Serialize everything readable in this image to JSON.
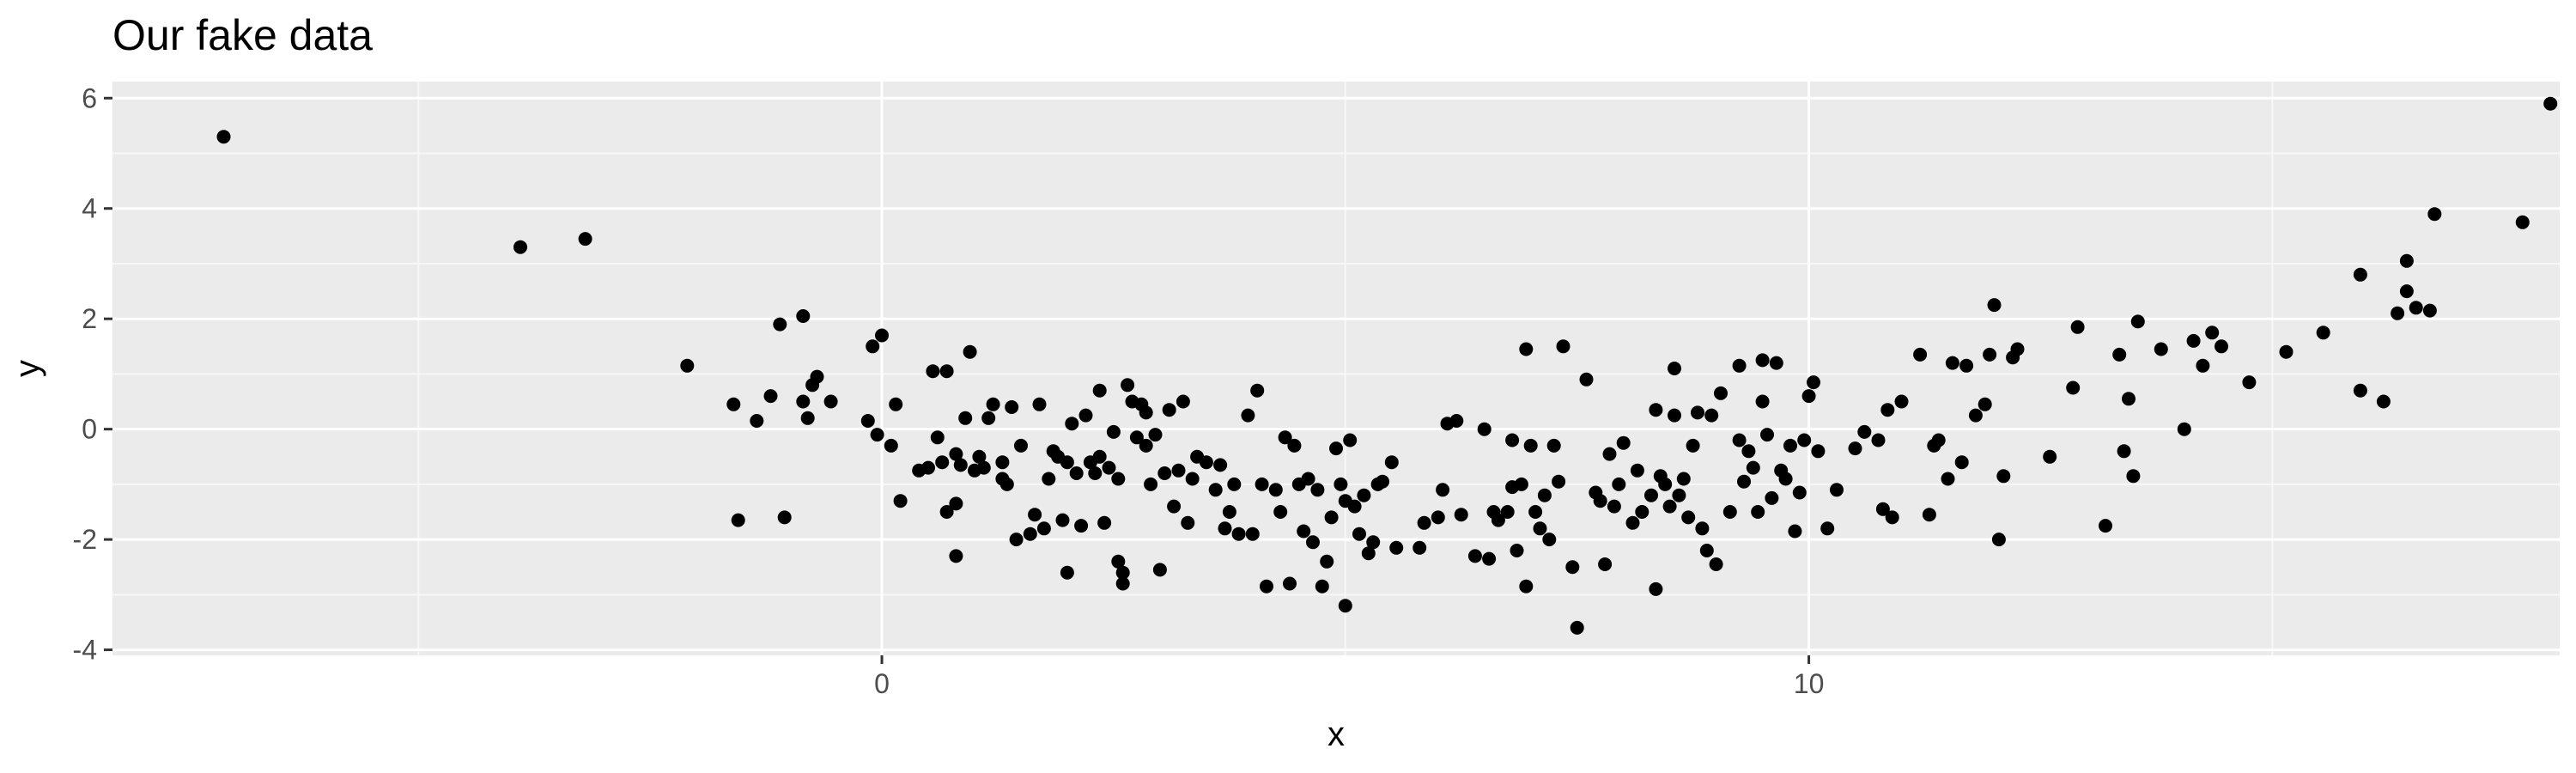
{
  "chart_data": {
    "type": "scatter",
    "title": "Our fake data",
    "xlabel": "x",
    "ylabel": "y",
    "xlim": [
      -8.3,
      18.1
    ],
    "ylim": [
      -4.1,
      6.3
    ],
    "x_ticks": [
      0,
      10
    ],
    "x_tick_labels": [
      "0",
      "10"
    ],
    "y_ticks": [
      -4,
      -2,
      0,
      2,
      4,
      6
    ],
    "y_tick_labels": [
      "-4",
      "-2",
      "0",
      "2",
      "4",
      "6"
    ],
    "grid": true,
    "legend": "none",
    "colors": {
      "panel_background": "#ebebeb",
      "grid_major": "#ffffff",
      "grid_minor": "#f7f7f7",
      "points": "#000000",
      "tick_marks": "#333333",
      "tick_labels": "#4d4d4d"
    },
    "points": [
      [
        -7.1,
        5.3
      ],
      [
        -3.9,
        3.3
      ],
      [
        -3.2,
        3.45
      ],
      [
        -2.1,
        1.15
      ],
      [
        -1.6,
        0.45
      ],
      [
        -1.55,
        -1.65
      ],
      [
        -1.35,
        0.15
      ],
      [
        -1.2,
        0.6
      ],
      [
        -1.1,
        1.9
      ],
      [
        -1.05,
        -1.6
      ],
      [
        -0.85,
        2.05
      ],
      [
        -0.85,
        0.5
      ],
      [
        -0.8,
        0.2
      ],
      [
        -0.75,
        0.8
      ],
      [
        -0.7,
        0.95
      ],
      [
        -0.55,
        0.5
      ],
      [
        -0.15,
        0.15
      ],
      [
        -0.1,
        1.5
      ],
      [
        -0.05,
        -0.1
      ],
      [
        0.0,
        1.7
      ],
      [
        0.1,
        -0.3
      ],
      [
        0.15,
        0.45
      ],
      [
        0.2,
        -1.3
      ],
      [
        0.4,
        -0.75
      ],
      [
        0.5,
        -0.7
      ],
      [
        0.55,
        1.05
      ],
      [
        0.6,
        -0.15
      ],
      [
        0.65,
        -0.6
      ],
      [
        0.7,
        -1.5
      ],
      [
        0.7,
        1.05
      ],
      [
        0.8,
        -1.35
      ],
      [
        0.8,
        -0.45
      ],
      [
        0.8,
        -2.3
      ],
      [
        0.85,
        -0.65
      ],
      [
        0.9,
        0.2
      ],
      [
        0.95,
        1.4
      ],
      [
        1.0,
        -0.75
      ],
      [
        1.05,
        -0.5
      ],
      [
        1.1,
        -0.7
      ],
      [
        1.15,
        0.2
      ],
      [
        1.2,
        0.45
      ],
      [
        1.3,
        -0.9
      ],
      [
        1.3,
        -0.6
      ],
      [
        1.35,
        -1.0
      ],
      [
        1.4,
        0.4
      ],
      [
        1.45,
        -2.0
      ],
      [
        1.5,
        -0.3
      ],
      [
        1.6,
        -1.9
      ],
      [
        1.65,
        -1.55
      ],
      [
        1.7,
        0.45
      ],
      [
        1.75,
        -1.8
      ],
      [
        1.8,
        -0.9
      ],
      [
        1.85,
        -0.4
      ],
      [
        1.9,
        -0.5
      ],
      [
        1.95,
        -1.65
      ],
      [
        2.0,
        -2.6
      ],
      [
        2.0,
        -0.6
      ],
      [
        2.05,
        0.1
      ],
      [
        2.1,
        -0.8
      ],
      [
        2.15,
        -1.75
      ],
      [
        2.2,
        0.25
      ],
      [
        2.25,
        -0.6
      ],
      [
        2.3,
        -0.8
      ],
      [
        2.35,
        -0.5
      ],
      [
        2.35,
        0.7
      ],
      [
        2.4,
        -1.7
      ],
      [
        2.45,
        -0.7
      ],
      [
        2.5,
        -0.05
      ],
      [
        2.55,
        -0.9
      ],
      [
        2.55,
        -2.4
      ],
      [
        2.6,
        -2.8
      ],
      [
        2.6,
        -2.6
      ],
      [
        2.65,
        0.8
      ],
      [
        2.7,
        0.5
      ],
      [
        2.75,
        -0.15
      ],
      [
        2.8,
        0.45
      ],
      [
        2.85,
        -0.3
      ],
      [
        2.85,
        0.3
      ],
      [
        2.9,
        -1.0
      ],
      [
        2.95,
        -0.1
      ],
      [
        3.0,
        -2.55
      ],
      [
        3.05,
        -0.8
      ],
      [
        3.1,
        0.35
      ],
      [
        3.15,
        -1.4
      ],
      [
        3.2,
        -0.75
      ],
      [
        3.25,
        0.5
      ],
      [
        3.3,
        -1.7
      ],
      [
        3.35,
        -0.9
      ],
      [
        3.4,
        -0.5
      ],
      [
        3.5,
        -0.6
      ],
      [
        3.6,
        -1.1
      ],
      [
        3.65,
        -0.65
      ],
      [
        3.7,
        -1.8
      ],
      [
        3.75,
        -1.5
      ],
      [
        3.8,
        -1.0
      ],
      [
        3.85,
        -1.9
      ],
      [
        3.95,
        0.25
      ],
      [
        4.0,
        -1.9
      ],
      [
        4.05,
        0.7
      ],
      [
        4.1,
        -1.0
      ],
      [
        4.15,
        -2.85
      ],
      [
        4.25,
        -1.1
      ],
      [
        4.3,
        -1.5
      ],
      [
        4.35,
        -0.15
      ],
      [
        4.4,
        -2.8
      ],
      [
        4.45,
        -0.3
      ],
      [
        4.5,
        -1.0
      ],
      [
        4.55,
        -1.85
      ],
      [
        4.6,
        -0.9
      ],
      [
        4.65,
        -2.05
      ],
      [
        4.7,
        -1.1
      ],
      [
        4.75,
        -2.85
      ],
      [
        4.8,
        -2.4
      ],
      [
        4.85,
        -1.6
      ],
      [
        4.9,
        -0.35
      ],
      [
        4.95,
        -1.0
      ],
      [
        5.0,
        -3.2
      ],
      [
        5.0,
        -1.3
      ],
      [
        5.05,
        -0.2
      ],
      [
        5.1,
        -1.4
      ],
      [
        5.15,
        -1.9
      ],
      [
        5.2,
        -1.2
      ],
      [
        5.25,
        -2.25
      ],
      [
        5.3,
        -2.05
      ],
      [
        5.35,
        -1.0
      ],
      [
        5.4,
        -0.95
      ],
      [
        5.5,
        -0.6
      ],
      [
        5.55,
        -2.15
      ],
      [
        5.8,
        -2.15
      ],
      [
        5.85,
        -1.7
      ],
      [
        6.0,
        -1.6
      ],
      [
        6.05,
        -1.1
      ],
      [
        6.1,
        0.1
      ],
      [
        6.2,
        0.15
      ],
      [
        6.25,
        -1.55
      ],
      [
        6.4,
        -2.3
      ],
      [
        6.5,
        0.0
      ],
      [
        6.55,
        -2.35
      ],
      [
        6.6,
        -1.5
      ],
      [
        6.65,
        -1.65
      ],
      [
        6.75,
        -1.5
      ],
      [
        6.8,
        -1.05
      ],
      [
        6.8,
        -0.2
      ],
      [
        6.85,
        -2.2
      ],
      [
        6.9,
        -1.0
      ],
      [
        6.95,
        1.45
      ],
      [
        6.95,
        -2.85
      ],
      [
        7.0,
        -0.3
      ],
      [
        7.05,
        -1.5
      ],
      [
        7.1,
        -1.8
      ],
      [
        7.15,
        -1.2
      ],
      [
        7.2,
        -2.0
      ],
      [
        7.25,
        -0.3
      ],
      [
        7.3,
        -0.95
      ],
      [
        7.35,
        1.5
      ],
      [
        7.45,
        -2.5
      ],
      [
        7.5,
        -3.6
      ],
      [
        7.6,
        0.9
      ],
      [
        7.7,
        -1.15
      ],
      [
        7.75,
        -1.3
      ],
      [
        7.8,
        -2.45
      ],
      [
        7.85,
        -0.45
      ],
      [
        7.9,
        -1.4
      ],
      [
        7.95,
        -1.0
      ],
      [
        8.0,
        -0.25
      ],
      [
        8.1,
        -1.7
      ],
      [
        8.15,
        -0.75
      ],
      [
        8.2,
        -1.5
      ],
      [
        8.3,
        -1.2
      ],
      [
        8.35,
        0.35
      ],
      [
        8.35,
        -2.9
      ],
      [
        8.4,
        -0.85
      ],
      [
        8.45,
        -1.0
      ],
      [
        8.5,
        -1.4
      ],
      [
        8.55,
        1.1
      ],
      [
        8.55,
        0.25
      ],
      [
        8.6,
        -1.2
      ],
      [
        8.65,
        -0.9
      ],
      [
        8.7,
        -1.6
      ],
      [
        8.75,
        -0.3
      ],
      [
        8.8,
        0.3
      ],
      [
        8.85,
        -1.8
      ],
      [
        8.9,
        -2.2
      ],
      [
        8.95,
        0.25
      ],
      [
        9.0,
        -2.45
      ],
      [
        9.05,
        0.65
      ],
      [
        9.15,
        -1.5
      ],
      [
        9.25,
        -0.2
      ],
      [
        9.25,
        1.15
      ],
      [
        9.3,
        -0.95
      ],
      [
        9.35,
        -0.4
      ],
      [
        9.4,
        -0.7
      ],
      [
        9.45,
        -1.5
      ],
      [
        9.5,
        1.25
      ],
      [
        9.5,
        0.5
      ],
      [
        9.55,
        -0.1
      ],
      [
        9.6,
        -1.25
      ],
      [
        9.65,
        1.2
      ],
      [
        9.7,
        -0.75
      ],
      [
        9.75,
        -0.9
      ],
      [
        9.8,
        -0.3
      ],
      [
        9.85,
        -1.85
      ],
      [
        9.9,
        -1.15
      ],
      [
        9.95,
        -0.2
      ],
      [
        10.0,
        0.6
      ],
      [
        10.05,
        0.85
      ],
      [
        10.1,
        -0.4
      ],
      [
        10.2,
        -1.8
      ],
      [
        10.3,
        -1.1
      ],
      [
        10.5,
        -0.35
      ],
      [
        10.6,
        -0.05
      ],
      [
        10.75,
        -0.2
      ],
      [
        10.8,
        -1.45
      ],
      [
        10.85,
        0.35
      ],
      [
        10.9,
        -1.6
      ],
      [
        11.0,
        0.5
      ],
      [
        11.2,
        1.35
      ],
      [
        11.3,
        -1.55
      ],
      [
        11.35,
        -0.3
      ],
      [
        11.4,
        -0.2
      ],
      [
        11.5,
        -0.9
      ],
      [
        11.55,
        1.2
      ],
      [
        11.65,
        -0.6
      ],
      [
        11.7,
        1.15
      ],
      [
        11.8,
        0.25
      ],
      [
        11.9,
        0.45
      ],
      [
        11.95,
        1.35
      ],
      [
        12.0,
        2.25
      ],
      [
        12.05,
        -2.0
      ],
      [
        12.1,
        -0.85
      ],
      [
        12.2,
        1.3
      ],
      [
        12.25,
        1.45
      ],
      [
        12.6,
        -0.5
      ],
      [
        12.9,
        1.85
      ],
      [
        12.85,
        0.75
      ],
      [
        13.2,
        -1.75
      ],
      [
        13.35,
        1.35
      ],
      [
        13.4,
        -0.4
      ],
      [
        13.45,
        0.55
      ],
      [
        13.5,
        -0.85
      ],
      [
        13.55,
        1.95
      ],
      [
        13.8,
        1.45
      ],
      [
        14.05,
        0.0
      ],
      [
        14.15,
        1.6
      ],
      [
        14.25,
        1.15
      ],
      [
        14.35,
        1.75
      ],
      [
        14.45,
        1.5
      ],
      [
        14.75,
        0.85
      ],
      [
        15.15,
        1.4
      ],
      [
        15.55,
        1.75
      ],
      [
        15.95,
        2.8
      ],
      [
        15.95,
        0.7
      ],
      [
        16.2,
        0.5
      ],
      [
        16.35,
        2.1
      ],
      [
        16.45,
        2.5
      ],
      [
        16.45,
        3.05
      ],
      [
        16.55,
        2.2
      ],
      [
        16.7,
        2.15
      ],
      [
        16.75,
        3.9
      ],
      [
        17.7,
        3.75
      ],
      [
        18.0,
        5.9
      ]
    ]
  }
}
